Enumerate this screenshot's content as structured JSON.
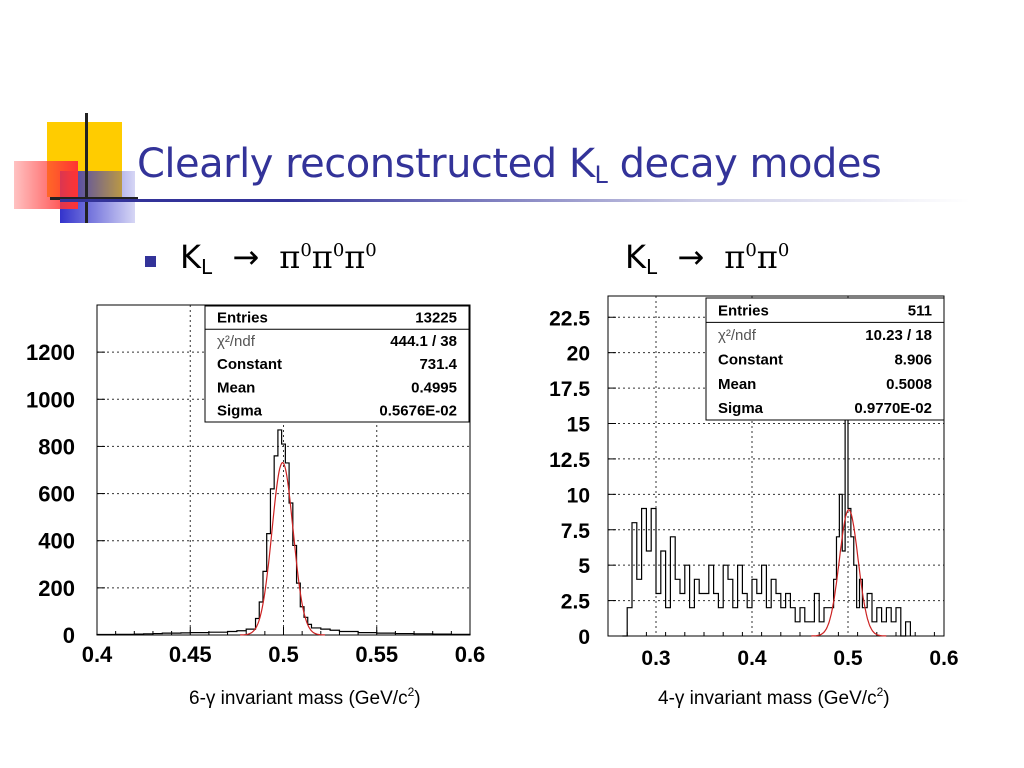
{
  "slide": {
    "title_main": "Clearly reconstructed K",
    "title_sub": "L",
    "title_rest": " decay modes",
    "accent_color": "#333399"
  },
  "left_heading": {
    "k": "K",
    "sub": "L",
    "arrow": "→",
    "pi": [
      "π",
      "π",
      "π"
    ],
    "sup": [
      "0",
      "0",
      "0"
    ]
  },
  "right_heading": {
    "k": "K",
    "sub": "L",
    "arrow": "→",
    "pi": [
      "π",
      "π"
    ],
    "sup": [
      "0",
      "0"
    ]
  },
  "left_caption": {
    "text": "6-γ invariant mass (GeV/c",
    "sup": "2",
    "close": ")"
  },
  "right_caption": {
    "text": "4-γ invariant mass (GeV/c",
    "sup": "2",
    "close": ")"
  },
  "chart_data": [
    {
      "type": "histogram",
      "xlim": [
        0.4,
        0.6
      ],
      "ylim": [
        0,
        1400
      ],
      "x_ticks": [
        "0.4",
        "0.45",
        "0.5",
        "0.55",
        "0.6"
      ],
      "y_ticks": [
        "0",
        "200",
        "400",
        "600",
        "800",
        "1000",
        "1200"
      ],
      "grid": true,
      "stats": [
        {
          "label": "Entries",
          "value": "13225"
        },
        {
          "label": "χ²/ndf",
          "value": "444.1    /    38"
        },
        {
          "label": "Constant",
          "value": "731.4"
        },
        {
          "label": "Mean",
          "value": "0.4995"
        },
        {
          "label": "Sigma",
          "value": "0.5676E-02"
        }
      ],
      "fit": {
        "constant": 731.4,
        "mean": 0.4995,
        "sigma": 0.005676,
        "color": "#cc2222"
      },
      "bins": {
        "x": [
          0.4,
          0.405,
          0.41,
          0.415,
          0.42,
          0.425,
          0.43,
          0.435,
          0.44,
          0.445,
          0.45,
          0.455,
          0.46,
          0.465,
          0.47,
          0.475,
          0.48,
          0.485,
          0.487,
          0.489,
          0.491,
          0.493,
          0.495,
          0.497,
          0.499,
          0.501,
          0.503,
          0.505,
          0.507,
          0.509,
          0.511,
          0.513,
          0.515,
          0.52,
          0.525,
          0.53,
          0.54,
          0.55,
          0.56,
          0.57,
          0.58,
          0.59
        ],
        "y": [
          2,
          2,
          3,
          3,
          4,
          5,
          6,
          8,
          8,
          9,
          10,
          10,
          12,
          12,
          15,
          18,
          25,
          70,
          140,
          270,
          430,
          620,
          760,
          870,
          810,
          730,
          560,
          380,
          220,
          120,
          75,
          45,
          30,
          25,
          20,
          15,
          10,
          8,
          6,
          5,
          4,
          3
        ]
      }
    },
    {
      "type": "histogram",
      "xlim": [
        0.25,
        0.6
      ],
      "ylim": [
        0,
        24
      ],
      "x_ticks": [
        "0.3",
        "0.4",
        "0.5",
        "0.6"
      ],
      "y_ticks": [
        "0",
        "2.5",
        "5",
        "7.5",
        "10",
        "12.5",
        "15",
        "17.5",
        "20",
        "22.5"
      ],
      "grid": true,
      "stats": [
        {
          "label": "Entries",
          "value": "511"
        },
        {
          "label": "χ²/ndf",
          "value": "10.23    /    18"
        },
        {
          "label": "Constant",
          "value": "8.906"
        },
        {
          "label": "Mean",
          "value": "0.5008"
        },
        {
          "label": "Sigma",
          "value": "0.9770E-02"
        }
      ],
      "fit": {
        "constant": 8.906,
        "mean": 0.5008,
        "sigma": 0.00977,
        "color": "#cc2222"
      },
      "bins": {
        "x": [
          0.265,
          0.27,
          0.275,
          0.28,
          0.285,
          0.29,
          0.295,
          0.3,
          0.305,
          0.31,
          0.315,
          0.32,
          0.325,
          0.33,
          0.335,
          0.34,
          0.345,
          0.35,
          0.355,
          0.36,
          0.365,
          0.37,
          0.375,
          0.38,
          0.385,
          0.39,
          0.395,
          0.4,
          0.405,
          0.41,
          0.415,
          0.42,
          0.425,
          0.43,
          0.435,
          0.44,
          0.445,
          0.45,
          0.455,
          0.46,
          0.465,
          0.47,
          0.475,
          0.48,
          0.485,
          0.488,
          0.491,
          0.494,
          0.497,
          0.5,
          0.503,
          0.506,
          0.509,
          0.512,
          0.515,
          0.52,
          0.525,
          0.53,
          0.535,
          0.54,
          0.545,
          0.55,
          0.555,
          0.56
        ],
        "y": [
          0,
          2,
          8,
          4,
          9,
          6,
          9,
          3,
          6,
          2,
          7,
          4,
          3,
          5,
          2,
          4,
          3,
          3,
          5,
          3,
          2,
          5,
          4,
          2,
          5,
          3,
          2,
          4,
          3,
          5,
          2,
          4,
          3,
          2,
          3,
          2,
          1,
          2,
          1,
          1,
          3,
          1,
          2,
          2,
          4,
          7,
          10,
          6,
          18,
          9,
          7,
          5,
          2,
          4,
          2,
          3,
          1,
          2,
          1,
          2,
          1,
          2,
          0,
          1
        ]
      }
    }
  ]
}
